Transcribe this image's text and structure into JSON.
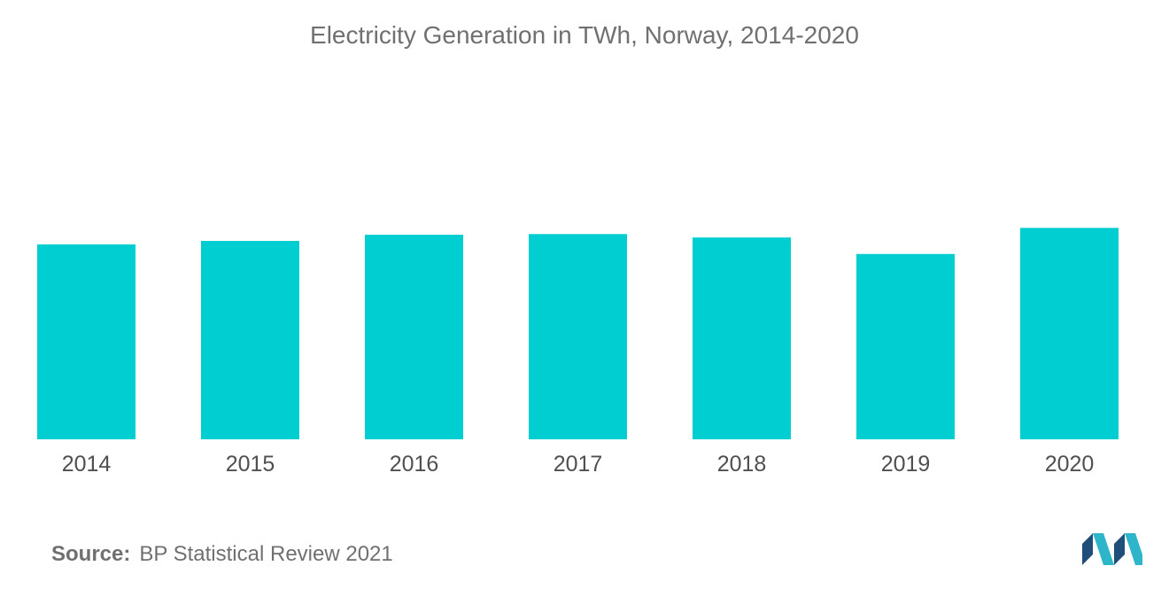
{
  "chart_data": {
    "type": "bar",
    "title": "Electricity Generation in TWh, Norway, 2014-2020",
    "categories": [
      "2014",
      "2015",
      "2016",
      "2017",
      "2018",
      "2019",
      "2020"
    ],
    "values": [
      142,
      144.5,
      149,
      149.5,
      147,
      135,
      154
    ],
    "xlabel": "",
    "ylabel": "",
    "ylim": [
      0,
      200
    ],
    "grid": false,
    "legend": "none",
    "bar_color": "#00CED1"
  },
  "source": {
    "label": "Source:",
    "text": "BP Statistical Review 2021"
  },
  "logo": {
    "icon": "mordor-intelligence-logo-icon",
    "colors": [
      "#1F4E79",
      "#2EB5C9"
    ]
  }
}
